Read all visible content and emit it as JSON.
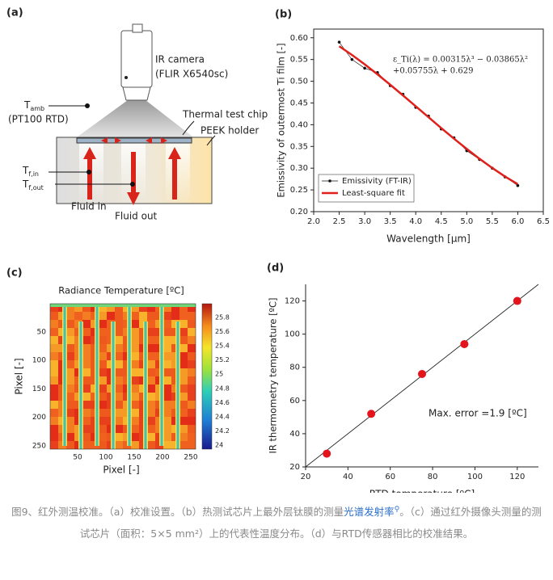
{
  "panel_a": {
    "label": "(a)",
    "camera": "IR camera",
    "camera_model": "(FLIR X6540sc)",
    "t_amb": {
      "main": "T",
      "sub": "amb"
    },
    "rtd": "(PT100 RTD)",
    "chip": "Thermal test chip",
    "holder": "PEEK holder",
    "t_in": {
      "main": "T",
      "sub": "f,in"
    },
    "t_out": {
      "main": "T",
      "sub": "f,out"
    },
    "fluid_in": "Fluid in",
    "fluid_out": "Fluid out"
  },
  "panel_c": {
    "label": "(c)",
    "title": "Radiance Temperature [ºC]",
    "xlabel": "Pixel [-]",
    "ylabel": "Pixel [-]",
    "xticks": [
      50,
      100,
      150,
      200,
      250
    ],
    "yticks": [
      50,
      100,
      150,
      200,
      250
    ],
    "colorbar_ticks": [
      25.8,
      25.6,
      25.4,
      25.2,
      25,
      24.8,
      24.6,
      24.4,
      24.2,
      24
    ]
  },
  "chart_data": [
    {
      "type": "scatter",
      "panel_label": "(b)",
      "xlabel": "Wavelength [μm]",
      "ylabel": "Emissivity of outermost Ti film [-]",
      "annotation": [
        "ε_Ti(λ) = 0.00315λ³ − 0.03865λ²",
        "+0.05755λ + 0.629"
      ],
      "x": [
        2.5,
        2.75,
        3.0,
        3.25,
        3.5,
        3.75,
        4.0,
        4.25,
        4.5,
        4.75,
        5.0,
        5.25,
        5.5,
        5.75,
        6.0
      ],
      "series": [
        {
          "name": "Emissivity (FT-IR)",
          "color": "#111111",
          "kind": "markers",
          "values": [
            0.59,
            0.55,
            0.53,
            0.52,
            0.49,
            0.47,
            0.44,
            0.42,
            0.39,
            0.37,
            0.34,
            0.32,
            0.3,
            0.28,
            0.26
          ]
        },
        {
          "name": "Least-square fit",
          "color": "#e0201b",
          "kind": "line",
          "values": [
            0.5805,
            0.5605,
            0.5389,
            0.5159,
            0.492,
            0.4674,
            0.4424,
            0.4173,
            0.3923,
            0.3679,
            0.3443,
            0.3216,
            0.3004,
            0.2808,
            0.2633
          ]
        }
      ],
      "xlim": [
        2.0,
        6.5
      ],
      "xticks": [
        {
          "value": 2,
          "label": "2.0"
        },
        2.5,
        {
          "value": 3,
          "label": "3.0"
        },
        3.5,
        {
          "value": 4,
          "label": "4.0"
        },
        4.5,
        {
          "value": 5,
          "label": "5.0"
        },
        5.5,
        {
          "value": 6,
          "label": "6.0"
        },
        6.5
      ],
      "ylim": [
        0.2,
        0.62
      ],
      "yticks": [
        {
          "value": 0.2,
          "label": "0.20"
        },
        0.25,
        {
          "value": 0.3,
          "label": "0.30"
        },
        0.35,
        {
          "value": 0.4,
          "label": "0.40"
        },
        0.45,
        {
          "value": 0.5,
          "label": "0.50"
        },
        0.55,
        {
          "value": 0.6,
          "label": "0.60"
        }
      ],
      "legend": "lower left",
      "frame": true
    },
    {
      "type": "scatter",
      "panel_label": "(d)",
      "xlabel": "RTD temperature [ºC]",
      "ylabel": "IR thermometry temperature [ºC]",
      "annotation": [
        "Max. error =1.9 [ºC]"
      ],
      "x": [
        30,
        51,
        75,
        95,
        120
      ],
      "series": [
        {
          "color": "#e3141b",
          "kind": "markers",
          "values": [
            28,
            52,
            76,
            94,
            120
          ]
        }
      ],
      "xlim": [
        20,
        130
      ],
      "xticks": [
        20,
        40,
        60,
        80,
        100,
        120
      ],
      "ylim": [
        20,
        130
      ],
      "yticks": [
        20,
        40,
        60,
        80,
        100,
        120
      ],
      "identity_line": true,
      "frame": false
    }
  ],
  "caption": {
    "before": "图9、红外测温校准。（a）校准设置。（b）热测试芯片上最外层钛膜的测量",
    "link": "光谱发射率",
    "after": "。（c）通过红外摄像头测量的测试芯片（面积：5×5 mm²）上的代表性温度分布。（d）与RTD传感器相比的校准结果。"
  }
}
